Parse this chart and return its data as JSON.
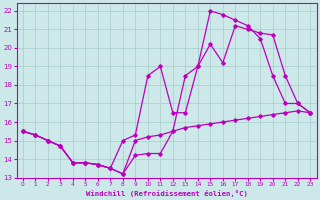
{
  "bg_color": "#cce8e8",
  "grid_color": "#aacccc",
  "line_color": "#bb00bb",
  "xlabel": "Windchill (Refroidissement éolien,°C)",
  "xlim": [
    -0.5,
    23.5
  ],
  "ylim": [
    13,
    22.4
  ],
  "xticks": [
    0,
    1,
    2,
    3,
    4,
    5,
    6,
    7,
    8,
    9,
    10,
    11,
    12,
    13,
    14,
    15,
    16,
    17,
    18,
    19,
    20,
    21,
    22,
    23
  ],
  "yticks": [
    13,
    14,
    15,
    16,
    17,
    18,
    19,
    20,
    21,
    22
  ],
  "line1_x": [
    0,
    1,
    2,
    3,
    4,
    5,
    6,
    7,
    8,
    9,
    10,
    11,
    12,
    13,
    14,
    15,
    16,
    17,
    18,
    19,
    20,
    21,
    22,
    23
  ],
  "line1_y": [
    15.5,
    15.3,
    15.0,
    14.7,
    13.8,
    13.8,
    13.7,
    13.5,
    13.2,
    15.0,
    15.2,
    15.3,
    15.5,
    15.7,
    15.8,
    15.9,
    16.0,
    16.1,
    16.2,
    16.3,
    16.4,
    16.5,
    16.6,
    16.5
  ],
  "line2_x": [
    0,
    1,
    2,
    3,
    4,
    5,
    6,
    7,
    8,
    9,
    10,
    11,
    12,
    13,
    14,
    15,
    16,
    17,
    18,
    19,
    20,
    21,
    22,
    23
  ],
  "line2_y": [
    15.5,
    15.3,
    15.0,
    14.7,
    13.8,
    13.8,
    13.7,
    13.5,
    15.0,
    15.3,
    18.5,
    19.0,
    16.5,
    16.5,
    19.0,
    20.2,
    19.2,
    21.2,
    21.0,
    20.8,
    20.7,
    18.5,
    17.0,
    16.5
  ],
  "line3_x": [
    0,
    1,
    2,
    3,
    4,
    5,
    6,
    7,
    8,
    9,
    10,
    11,
    12,
    13,
    14,
    15,
    16,
    17,
    18,
    19,
    20,
    21,
    22,
    23
  ],
  "line3_y": [
    15.5,
    15.3,
    15.0,
    14.7,
    13.8,
    13.8,
    13.7,
    13.5,
    13.2,
    14.2,
    14.3,
    14.3,
    15.5,
    18.5,
    19.0,
    22.0,
    21.8,
    21.5,
    21.2,
    20.5,
    18.5,
    17.0,
    17.0,
    16.5
  ]
}
